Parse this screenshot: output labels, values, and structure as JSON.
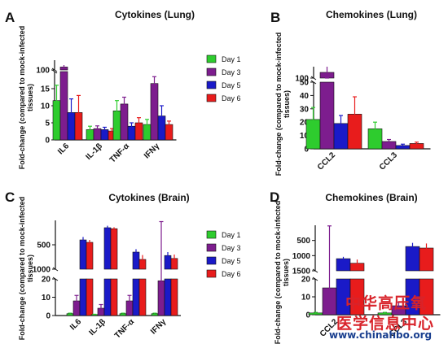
{
  "legend_items": [
    "Day 1",
    "Day 3",
    "Day 5",
    "Day 6"
  ],
  "colors": {
    "day1": "#2ecc2e",
    "day3": "#7d1d8e",
    "day5": "#1a1ac8",
    "day6": "#e81c1c"
  },
  "watermark": {
    "line1": "中华高压氧",
    "line2": "医学信息中心",
    "url": "www.chinahbo.org"
  },
  "chart_data": [
    {
      "type": "bar",
      "panel_letter": "A",
      "title": "Cytokines (Lung)",
      "ylabel": "Fold-change (compared to mock-infected tissues)",
      "categories": [
        "IL6",
        "IL-1β",
        "TNF-α",
        "IFNγ"
      ],
      "y_axis_break": true,
      "y_segments": [
        {
          "range": [
            0,
            20
          ],
          "ticks": [
            0,
            5,
            10,
            15
          ]
        },
        {
          "range": [
            90,
            100
          ],
          "ticks": [
            100
          ]
        }
      ],
      "series": [
        {
          "name": "Day 1",
          "values": [
            11.5,
            3,
            8.5,
            4.5
          ],
          "errors": [
            4.5,
            1,
            3,
            1.5
          ]
        },
        {
          "name": "Day 3",
          "values": [
            97,
            3.3,
            10.5,
            16.5
          ],
          "errors": [
            2,
            0.8,
            2,
            2
          ]
        },
        {
          "name": "Day 5",
          "values": [
            8,
            3,
            4,
            7
          ],
          "errors": [
            4,
            0.7,
            1,
            3
          ]
        },
        {
          "name": "Day 6",
          "values": [
            8,
            2.6,
            5,
            4.5
          ],
          "errors": [
            5,
            0.7,
            1.5,
            1
          ]
        }
      ]
    },
    {
      "type": "bar",
      "panel_letter": "B",
      "title": "Chemokines (Lung)",
      "ylabel": "Fold-change (compared to mock-infected tissues)",
      "categories": [
        "CCL2",
        "CCL3"
      ],
      "y_axis_break": true,
      "y_segments": [
        {
          "range": [
            0,
            50
          ],
          "ticks": [
            0,
            10,
            20,
            30,
            40,
            50
          ]
        },
        {
          "range": [
            90,
            100
          ],
          "ticks": [
            100
          ]
        }
      ],
      "series": [
        {
          "name": "Day 1",
          "values": [
            22,
            15
          ],
          "errors": [
            9,
            5
          ]
        },
        {
          "name": "Day 3",
          "values": [
            95,
            5.5
          ],
          "errors": [
            5,
            1.5
          ]
        },
        {
          "name": "Day 5",
          "values": [
            19,
            2.5
          ],
          "errors": [
            6,
            1
          ]
        },
        {
          "name": "Day 6",
          "values": [
            26,
            4
          ],
          "errors": [
            13,
            1
          ]
        }
      ]
    },
    {
      "type": "bar",
      "panel_letter": "C",
      "title": "Cytokines (Brain)",
      "ylabel": "Fold-change (compared to mock-infected tissues)",
      "categories": [
        "IL6",
        "IL-1β",
        "TNF-α",
        "IFNγ"
      ],
      "y_axis_break": true,
      "y_segments": [
        {
          "range": [
            0,
            20
          ],
          "ticks": [
            0,
            10,
            20
          ]
        },
        {
          "range": [
            0,
            1000
          ],
          "ticks": [
            500,
            1000
          ]
        }
      ],
      "series": [
        {
          "name": "Day 1",
          "values": [
            1,
            0.5,
            1,
            1
          ],
          "errors": [
            0.3,
            0.2,
            0.3,
            0.3
          ]
        },
        {
          "name": "Day 3",
          "values": [
            8,
            4,
            8,
            19
          ],
          "errors": [
            3,
            2,
            3,
            6
          ]
        },
        {
          "name": "Day 5",
          "values": [
            400,
            150,
            650,
            720
          ],
          "errors": [
            60,
            40,
            60,
            70
          ]
        },
        {
          "name": "Day 6",
          "values": [
            450,
            170,
            800,
            780
          ],
          "errors": [
            50,
            30,
            90,
            80
          ]
        }
      ]
    },
    {
      "type": "bar",
      "panel_letter": "D",
      "title": "Chemokines (Brain)",
      "ylabel": "Fold-change (compared to mock-infected tissues)",
      "categories": [
        "CCL2",
        "CCL3"
      ],
      "y_axis_break": true,
      "y_segments": [
        {
          "range": [
            0,
            20
          ],
          "ticks": [
            0,
            10,
            20
          ]
        },
        {
          "range": [
            0,
            1500
          ],
          "ticks": [
            500,
            1000,
            1500
          ]
        }
      ],
      "series": [
        {
          "name": "Day 1",
          "values": [
            1,
            1
          ],
          "errors": [
            0.3,
            0.3
          ]
        },
        {
          "name": "Day 3",
          "values": [
            15,
            5
          ],
          "errors": [
            6,
            2
          ]
        },
        {
          "name": "Day 5",
          "values": [
            1100,
            700
          ],
          "errors": [
            60,
            120
          ]
        },
        {
          "name": "Day 6",
          "values": [
            1250,
            750
          ],
          "errors": [
            120,
            150
          ]
        }
      ]
    }
  ]
}
